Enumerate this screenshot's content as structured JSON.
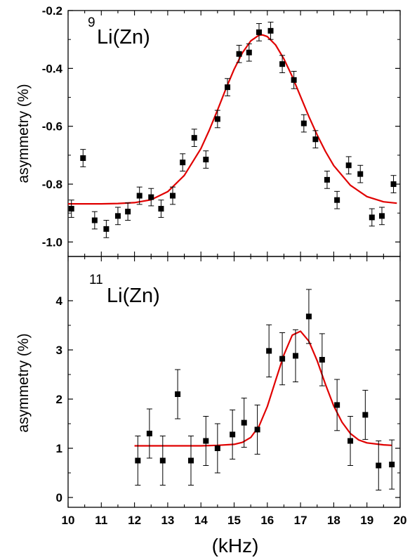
{
  "chart_data": [
    {
      "type": "scatter",
      "panel": "top",
      "label_sup": "9",
      "label_text": "Li(Zn)",
      "ylabel": "asymmetry (%)",
      "xlim": [
        10,
        20
      ],
      "ylim": [
        -1.05,
        -0.2
      ],
      "yticks": [
        -1.0,
        -0.8,
        -0.6,
        -0.4,
        -0.2
      ],
      "ytick_labels": [
        "-1.0",
        "-0.8",
        "-0.6",
        "-0.4",
        "-0.2"
      ],
      "series": [
        {
          "kind": "points",
          "color": "#000000",
          "x": [
            10.1,
            10.45,
            10.8,
            11.15,
            11.5,
            11.8,
            12.15,
            12.5,
            12.8,
            13.15,
            13.45,
            13.8,
            14.15,
            14.5,
            14.8,
            15.15,
            15.45,
            15.75,
            16.1,
            16.45,
            16.8,
            17.1,
            17.45,
            17.8,
            18.1,
            18.45,
            18.8,
            19.15,
            19.45,
            19.8
          ],
          "y": [
            -0.885,
            -0.71,
            -0.925,
            -0.955,
            -0.91,
            -0.895,
            -0.84,
            -0.845,
            -0.885,
            -0.84,
            -0.725,
            -0.64,
            -0.715,
            -0.575,
            -0.465,
            -0.35,
            -0.345,
            -0.275,
            -0.27,
            -0.385,
            -0.44,
            -0.59,
            -0.645,
            -0.785,
            -0.855,
            -0.735,
            -0.765,
            -0.915,
            -0.91,
            -0.8
          ],
          "err": [
            0.03,
            0.03,
            0.03,
            0.03,
            0.03,
            0.03,
            0.03,
            0.03,
            0.03,
            0.03,
            0.03,
            0.03,
            0.03,
            0.03,
            0.03,
            0.03,
            0.03,
            0.03,
            0.03,
            0.03,
            0.03,
            0.03,
            0.03,
            0.03,
            0.03,
            0.03,
            0.03,
            0.03,
            0.03,
            0.03
          ]
        },
        {
          "kind": "fit",
          "color": "#e00000",
          "x": [
            10.0,
            10.5,
            11.0,
            11.5,
            12.0,
            12.5,
            13.0,
            13.5,
            14.0,
            14.25,
            14.5,
            14.75,
            15.0,
            15.25,
            15.5,
            15.75,
            15.85,
            16.0,
            16.25,
            16.5,
            16.75,
            17.0,
            17.25,
            17.5,
            17.75,
            18.0,
            18.5,
            19.0,
            19.5,
            19.9
          ],
          "y": [
            -0.868,
            -0.868,
            -0.868,
            -0.867,
            -0.864,
            -0.854,
            -0.826,
            -0.77,
            -0.677,
            -0.614,
            -0.544,
            -0.471,
            -0.403,
            -0.346,
            -0.305,
            -0.285,
            -0.284,
            -0.29,
            -0.319,
            -0.367,
            -0.428,
            -0.497,
            -0.566,
            -0.63,
            -0.687,
            -0.736,
            -0.804,
            -0.843,
            -0.861,
            -0.866
          ]
        }
      ]
    },
    {
      "type": "scatter",
      "panel": "bottom",
      "label_sup": "11",
      "label_text": "Li(Zn)",
      "ylabel": "asymmetry (%)",
      "xlabel": "(kHz)",
      "xlim": [
        10,
        20
      ],
      "ylim": [
        -0.2,
        4.9
      ],
      "yticks": [
        0,
        1,
        2,
        3,
        4
      ],
      "ytick_labels": [
        "0",
        "1",
        "2",
        "3",
        "4"
      ],
      "xticks": [
        10,
        11,
        12,
        13,
        14,
        15,
        16,
        17,
        18,
        19,
        20
      ],
      "xtick_labels": [
        "10",
        "11",
        "12",
        "13",
        "14",
        "15",
        "16",
        "17",
        "18",
        "19",
        "20"
      ],
      "series": [
        {
          "kind": "points",
          "color": "#000000",
          "x": [
            12.1,
            12.45,
            12.85,
            13.3,
            13.7,
            14.15,
            14.5,
            14.95,
            15.3,
            15.7,
            16.05,
            16.45,
            16.85,
            17.25,
            17.65,
            18.1,
            18.5,
            18.95,
            19.35,
            19.75
          ],
          "y": [
            0.75,
            1.3,
            0.75,
            2.1,
            0.75,
            1.15,
            1.0,
            1.28,
            1.52,
            1.38,
            2.98,
            2.82,
            2.88,
            3.68,
            2.8,
            1.88,
            1.15,
            1.68,
            0.65,
            0.67
          ],
          "err": [
            0.5,
            0.5,
            0.5,
            0.5,
            0.5,
            0.5,
            0.5,
            0.5,
            0.5,
            0.5,
            0.53,
            0.53,
            0.53,
            0.55,
            0.53,
            0.52,
            0.5,
            0.5,
            0.5,
            0.5
          ]
        },
        {
          "kind": "fit",
          "color": "#e00000",
          "x": [
            12.0,
            13.0,
            14.0,
            14.5,
            15.0,
            15.25,
            15.5,
            15.75,
            16.0,
            16.25,
            16.5,
            16.75,
            17.0,
            17.25,
            17.5,
            17.75,
            18.0,
            18.25,
            18.5,
            18.75,
            19.0,
            19.5,
            19.75
          ],
          "y": [
            1.05,
            1.05,
            1.05,
            1.06,
            1.08,
            1.12,
            1.22,
            1.45,
            1.85,
            2.38,
            2.9,
            3.3,
            3.38,
            3.18,
            2.78,
            2.3,
            1.86,
            1.53,
            1.3,
            1.17,
            1.11,
            1.07,
            1.06
          ]
        }
      ]
    }
  ]
}
